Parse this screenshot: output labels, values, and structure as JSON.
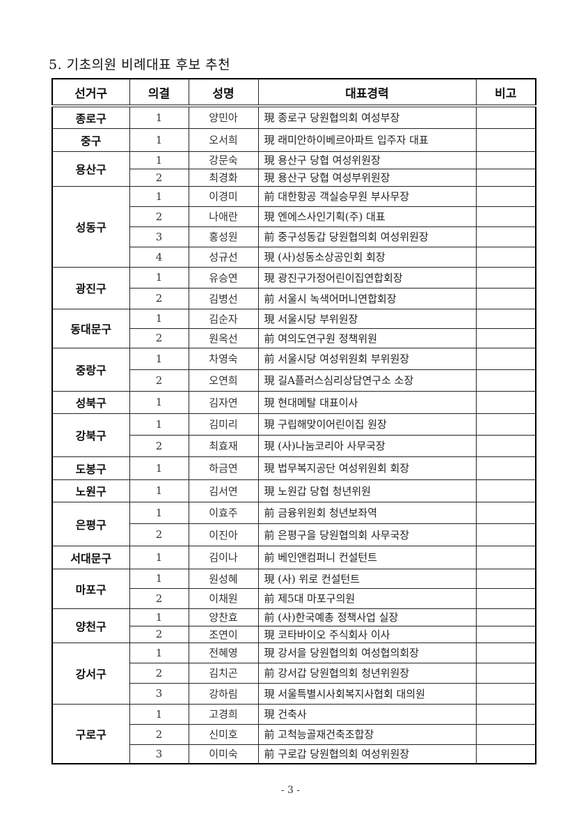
{
  "title": "5. 기초의원 비례대표 후보 추천",
  "headers": [
    "선거구",
    "의결",
    "성명",
    "대표경력",
    "비고"
  ],
  "groups": [
    {
      "district": "종로구",
      "rows": [
        {
          "n": "1",
          "name": "양민아",
          "career": "現 종로구 당원협의회 여성부장",
          "note": ""
        }
      ]
    },
    {
      "district": "중구",
      "rows": [
        {
          "n": "1",
          "name": "오서희",
          "career": "現 래미안하이베르아파트 입주자 대표",
          "note": ""
        }
      ]
    },
    {
      "district": "용산구",
      "rows": [
        {
          "n": "1",
          "name": "강문숙",
          "career": "現 용산구 당협 여성위원장",
          "note": ""
        },
        {
          "n": "2",
          "name": "최경화",
          "career": "現 용산구 당협 여성부위원장",
          "note": ""
        }
      ]
    },
    {
      "district": "성동구",
      "rows": [
        {
          "n": "1",
          "name": "이경미",
          "career": "前 대한항공 객실승무원 부사무장",
          "note": ""
        },
        {
          "n": "2",
          "name": "나애란",
          "career": "現 엔에스사인기획(주) 대표",
          "note": ""
        },
        {
          "n": "3",
          "name": "홍성원",
          "career": "前 중구성동갑 당원협의회 여성위원장",
          "note": ""
        },
        {
          "n": "4",
          "name": "성규선",
          "career": "現 (사)성동소상공인회 회장",
          "note": ""
        }
      ]
    },
    {
      "district": "광진구",
      "rows": [
        {
          "n": "1",
          "name": "유승연",
          "career": "現 광진구가정어린이집연합회장",
          "note": ""
        },
        {
          "n": "2",
          "name": "김병선",
          "career": "前 서울시 녹색어머니연합회장",
          "note": ""
        }
      ]
    },
    {
      "district": "동대문구",
      "rows": [
        {
          "n": "1",
          "name": "김순자",
          "career": "現 서울시당 부위원장",
          "note": ""
        },
        {
          "n": "2",
          "name": "원옥선",
          "career": "前 여의도연구원 정책위원",
          "note": ""
        }
      ]
    },
    {
      "district": "중랑구",
      "rows": [
        {
          "n": "1",
          "name": "차영숙",
          "career": "前 서울시당 여성위원회 부위원장",
          "note": ""
        },
        {
          "n": "2",
          "name": "오연희",
          "career": "現 길A플러스심리상담연구소 소장",
          "note": ""
        }
      ]
    },
    {
      "district": "성북구",
      "rows": [
        {
          "n": "1",
          "name": "김자연",
          "career": "現 현대메탈 대표이사",
          "note": ""
        }
      ]
    },
    {
      "district": "강북구",
      "rows": [
        {
          "n": "1",
          "name": "김미리",
          "career": "現 구립해맞이어린이집 원장",
          "note": ""
        },
        {
          "n": "2",
          "name": "최효재",
          "career": "現 (사)나눔코리아 사무국장",
          "note": ""
        }
      ]
    },
    {
      "district": "도봉구",
      "rows": [
        {
          "n": "1",
          "name": "하금연",
          "career": "現 법무복지공단 여성위원회 회장",
          "note": ""
        }
      ]
    },
    {
      "district": "노원구",
      "rows": [
        {
          "n": "1",
          "name": "김서연",
          "career": "現 노원갑 당협 청년위원",
          "note": ""
        }
      ]
    },
    {
      "district": "은평구",
      "rows": [
        {
          "n": "1",
          "name": "이효주",
          "career": "前 금융위원회 청년보좌역",
          "note": ""
        },
        {
          "n": "2",
          "name": "이진아",
          "career": "前 은평구을 당원협의회 사무국장",
          "note": ""
        }
      ]
    },
    {
      "district": "서대문구",
      "rows": [
        {
          "n": "1",
          "name": "김이나",
          "career": "前 베인앤컴퍼니 컨설턴트",
          "note": ""
        }
      ]
    },
    {
      "district": "마포구",
      "rows": [
        {
          "n": "1",
          "name": "원성혜",
          "career": "現 (사) 위로 컨설턴트",
          "note": ""
        },
        {
          "n": "2",
          "name": "이채원",
          "career": "前 제5대 마포구의원",
          "note": ""
        }
      ]
    },
    {
      "district": "양천구",
      "rows": [
        {
          "n": "1",
          "name": "양찬효",
          "career": "前 (사)한국예총 정책사업 실장",
          "note": ""
        },
        {
          "n": "2",
          "name": "조연이",
          "career": "現 코타바이오 주식회사 이사",
          "note": ""
        }
      ]
    },
    {
      "district": "강서구",
      "rows": [
        {
          "n": "1",
          "name": "전혜영",
          "career": "現 강서을 당원협의회 여성협의회장",
          "note": ""
        },
        {
          "n": "2",
          "name": "김치곤",
          "career": "前 강서갑 당원협의회 청년위원장",
          "note": ""
        },
        {
          "n": "3",
          "name": "강하림",
          "career": "現 서울특별시사회복지사협회 대의원",
          "note": ""
        }
      ]
    },
    {
      "district": "구로구",
      "rows": [
        {
          "n": "1",
          "name": "고경희",
          "career": "現 건축사",
          "note": ""
        },
        {
          "n": "2",
          "name": "신미호",
          "career": "前 고척능골재건축조합장",
          "note": ""
        },
        {
          "n": "3",
          "name": "이미숙",
          "career": "前 구로갑 당원협의회 여성위원장",
          "note": ""
        }
      ]
    }
  ],
  "footer": "- 3 -"
}
